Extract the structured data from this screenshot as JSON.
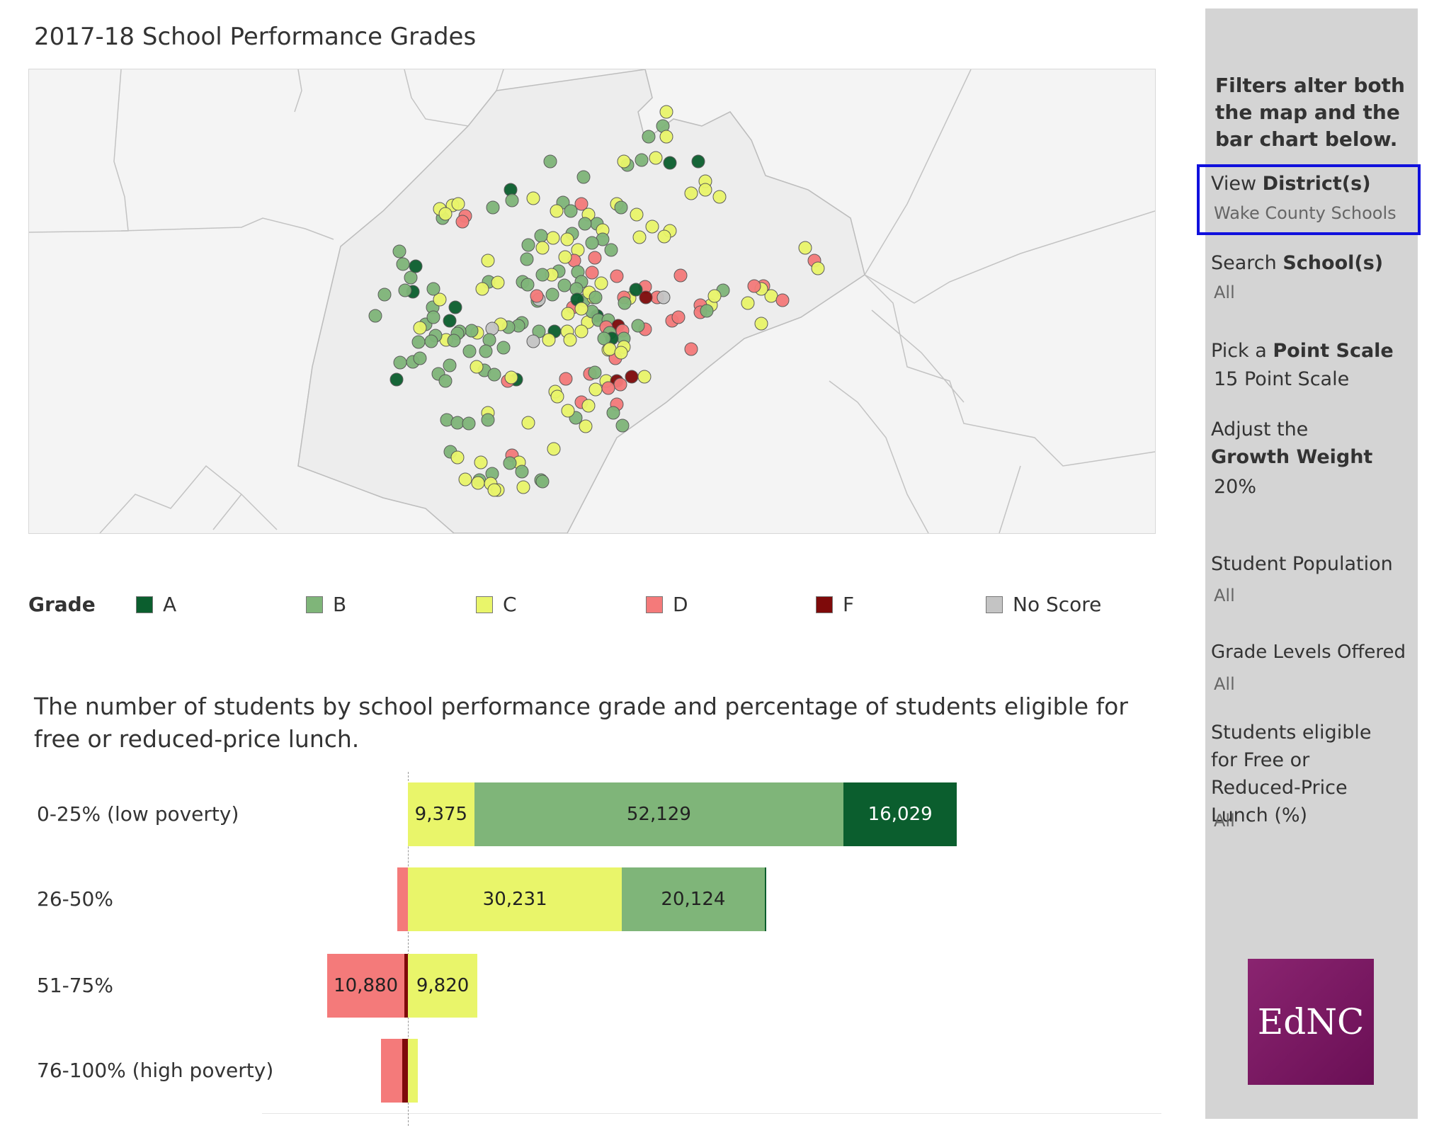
{
  "title": "2017-18 School Performance Grades",
  "legend": {
    "title": "Grade",
    "items": [
      {
        "label": "A",
        "color": "#0b5e2e"
      },
      {
        "label": "B",
        "color": "#7fb579"
      },
      {
        "label": "C",
        "color": "#e9f56a"
      },
      {
        "label": "D",
        "color": "#f47a7a"
      },
      {
        "label": "F",
        "color": "#7e0a0a"
      },
      {
        "label": "No Score",
        "color": "#c4c4c4"
      }
    ]
  },
  "bar_chart_title": "The number of students by school performance grade and percentage of students eligible for free or reduced-price lunch.",
  "chart_data": {
    "type": "bar",
    "orientation": "horizontal",
    "stacked": true,
    "diverging": true,
    "categories": [
      "0-25% (low poverty)",
      "26-50%",
      "51-75%",
      "76-100% (high poverty)"
    ],
    "series": [
      {
        "name": "F",
        "color": "#7e0a0a",
        "values": [
          0,
          0,
          -500,
          -800
        ]
      },
      {
        "name": "D",
        "color": "#f47a7a",
        "values": [
          0,
          -1500,
          -10880,
          -3000
        ]
      },
      {
        "name": "C",
        "color": "#e9f56a",
        "values": [
          9375,
          30231,
          9820,
          1400
        ]
      },
      {
        "name": "B",
        "color": "#7fb579",
        "values": [
          52129,
          20124,
          0,
          0
        ]
      },
      {
        "name": "A",
        "color": "#0b5e2e",
        "values": [
          16029,
          200,
          0,
          0
        ]
      }
    ],
    "data_labels": [
      [
        "",
        "",
        "9,375",
        "52,129",
        "16,029"
      ],
      [
        "",
        "",
        "30,231",
        "20,124",
        ""
      ],
      [
        "",
        "10,880",
        "9,820",
        "",
        ""
      ],
      [
        "",
        "",
        "",
        "",
        ""
      ]
    ]
  },
  "sidebar": {
    "note": "Filters alter both the map and the bar chart below.",
    "filters": [
      {
        "label_plain": "View ",
        "label_bold": "District(s)",
        "value": "Wake County Schools"
      },
      {
        "label_plain": "Search ",
        "label_bold": "School(s)",
        "value": "All"
      },
      {
        "label_plain": "Pick a ",
        "label_bold": "Point Scale",
        "value": "15 Point Scale"
      },
      {
        "label_plain": "Adjust the ",
        "label_bold": "Growth Weight",
        "value": "20%"
      },
      {
        "label_plain": "Student Population",
        "label_bold": "",
        "value": "All"
      },
      {
        "label_plain": "Grade Levels Offered",
        "label_bold": "",
        "value": "All"
      },
      {
        "label_plain": "Students eligible for Free or Reduced-Price Lunch (%)",
        "label_bold": "",
        "value": "All"
      }
    ],
    "logo_text": "EdNC"
  }
}
